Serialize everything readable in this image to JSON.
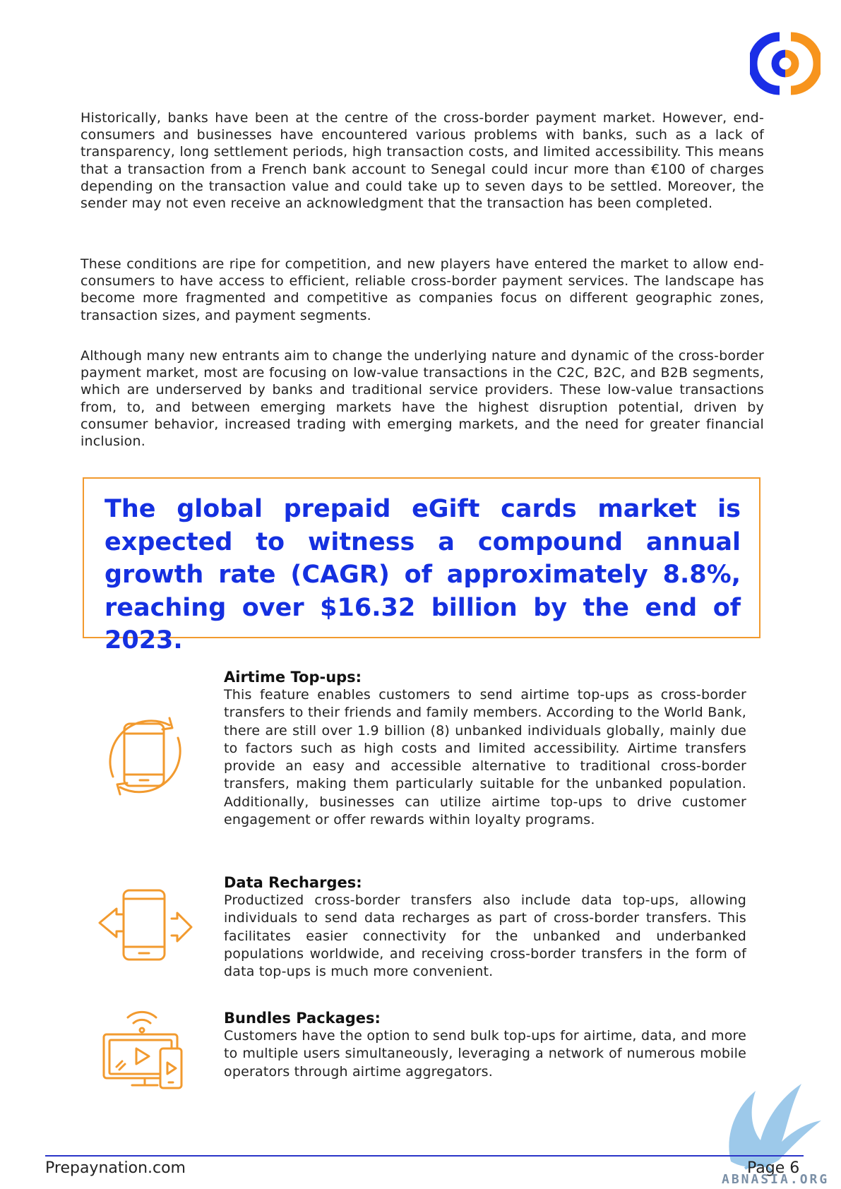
{
  "paragraphs": [
    "Historically, banks have been at the centre of the cross-border payment market. However, end-consumers and businesses have encountered various problems with banks, such as a lack of transparency, long settlement periods, high transaction costs, and limited accessibility. This means that a transaction from a French bank account to Senegal could incur more than €100 of charges depending on the transaction value and could take up to seven days to be settled. Moreover, the sender may not even receive an acknowledgment that the transaction has been completed.",
    "These conditions are ripe for competition, and new players have entered the market to allow end-consumers to have access to efficient, reliable cross-border payment services. The landscape has become more fragmented and competitive as companies focus on different geographic zones, transaction sizes, and payment segments.",
    "Although many new entrants aim to change the underlying nature and dynamic of the cross-border payment market, most are focusing on low-value transactions in the C2C, B2C, and B2B segments, which are underserved by banks and traditional service providers. These low-value transactions from, to, and between emerging markets have the highest disruption potential, driven by consumer behavior, increased trading with emerging markets, and the need for greater financial inclusion."
  ],
  "callout": {
    "text": "The global prepaid eGift cards market is expected to witness a compound annual growth rate (CAGR) of approximately 8.8%, reaching over $16.32 billion by the end of 2023.",
    "color": "#1530e0",
    "border_color": "#f29a2e"
  },
  "features": [
    {
      "title": "Airtime Top-ups:",
      "icon": "phone-refresh-icon",
      "body": "This feature enables customers to send airtime top-ups as cross-border transfers to their friends and family members. According to the World Bank, there are still over 1.9 billion (8) unbanked individuals globally, mainly due to factors such as high costs and limited accessibility. Airtime transfers provide an easy and accessible alternative to traditional cross-border transfers, making them particularly suitable for the unbanked population. Additionally, businesses can utilize airtime top-ups to drive customer engagement or offer rewards within loyalty programs."
    },
    {
      "title": "Data Recharges:",
      "icon": "phone-transfer-icon",
      "body": "Productized cross-border transfers also include data top-ups, allowing individuals to send data recharges as part of cross-border transfers. This facilitates easier connectivity for the unbanked and underbanked populations worldwide, and receiving cross-border transfers in the form of data top-ups is much more convenient."
    },
    {
      "title": "Bundles Packages:",
      "icon": "media-devices-icon",
      "body": "Customers have the option to send bulk top-ups for airtime, data, and more to multiple users simultaneously, leveraging a network of numerous mobile operators through airtime aggregators."
    }
  ],
  "footer": {
    "site": "Prepaynation.com",
    "page": "Page 6",
    "line_color": "#2a35c8"
  },
  "watermark": "ABNASIA.ORG",
  "icon_color": "#f29a2e"
}
